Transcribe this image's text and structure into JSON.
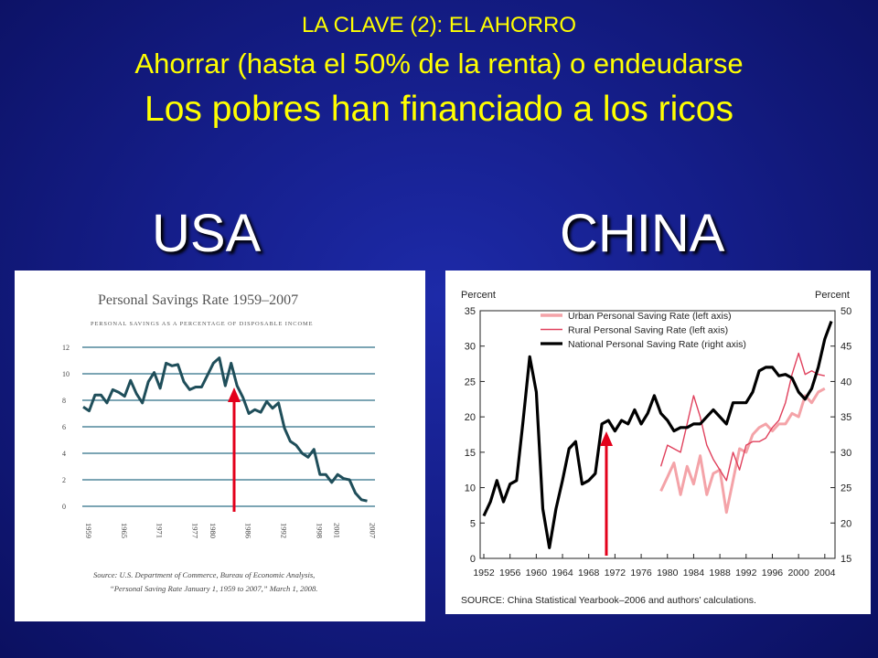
{
  "slide": {
    "title_line1": "LA CLAVE (2): EL AHORRO",
    "title_line2": "Ahorrar (hasta el 50% de la renta) o endeudarse",
    "title_line3": "Los pobres han financiado a los ricos",
    "left_label": "USA",
    "right_label": "CHINA"
  },
  "colors": {
    "background": "#151e8a",
    "title": "#ffff00",
    "usa_line": "#1f4e5a",
    "china_urban": "#f4a3a8",
    "china_rural": "#e0405c",
    "china_national": "#000000",
    "arrow": "#e3001b"
  },
  "chart_data": [
    {
      "type": "line",
      "title": "Personal Savings Rate 1959–2007",
      "subtitle": "PERSONAL SAVINGS AS A PERCENTAGE OF DISPOSABLE INCOME",
      "xlabel": "",
      "ylabel": "",
      "xlim": [
        1959,
        2008
      ],
      "ylim": [
        0,
        12
      ],
      "yticks": [
        0,
        2,
        4,
        6,
        8,
        10,
        12
      ],
      "xticks": [
        "1959",
        "1965",
        "1971",
        "1977",
        "1980",
        "1986",
        "1992",
        "1998",
        "2001",
        "2007"
      ],
      "grid": true,
      "source": "Source: U.S. Department of Commerce, Bureau of Economic Analysis, “Personal Saving Rate January 1, 1959 to 2007,” March 1, 2008.",
      "series": [
        {
          "x": [
            1959,
            1960,
            1961,
            1962,
            1963,
            1964,
            1965,
            1966,
            1967,
            1968,
            1969,
            1970,
            1971,
            1972,
            1973,
            1974,
            1975,
            1976,
            1977,
            1978,
            1979,
            1980,
            1981,
            1982,
            1983,
            1984,
            1985,
            1986,
            1987,
            1988,
            1989,
            1990,
            1991,
            1992,
            1993,
            1994,
            1995,
            1996,
            1997,
            1998,
            1999,
            2000,
            2001,
            2002,
            2003,
            2004,
            2005,
            2006,
            2007
          ],
          "values": [
            7.5,
            7.2,
            8.4,
            8.4,
            7.8,
            8.8,
            8.6,
            8.3,
            9.5,
            8.5,
            7.8,
            9.4,
            10.1,
            8.9,
            10.8,
            10.6,
            10.7,
            9.4,
            8.8,
            9.0,
            9.0,
            9.9,
            10.8,
            11.2,
            9.1,
            10.8,
            9.1,
            8.2,
            7.0,
            7.3,
            7.1,
            7.9,
            7.4,
            7.8,
            5.9,
            4.9,
            4.6,
            4.0,
            3.7,
            4.3,
            2.4,
            2.4,
            1.8,
            2.4,
            2.1,
            2.0,
            1.0,
            0.5,
            0.4
          ]
        }
      ],
      "annotation": "red arrow pointing up at 1986"
    },
    {
      "type": "line",
      "title": "",
      "ylabel_left": "Percent",
      "ylabel_right": "Percent",
      "xlim": [
        1952,
        2005
      ],
      "ylim_left": [
        0,
        35
      ],
      "ylim_right": [
        15,
        50
      ],
      "yticks_left": [
        0,
        5,
        10,
        15,
        20,
        25,
        30,
        35
      ],
      "yticks_right": [
        15,
        20,
        25,
        30,
        35,
        40,
        45,
        50
      ],
      "xticks": [
        "1952",
        "1956",
        "1960",
        "1964",
        "1968",
        "1972",
        "1976",
        "1980",
        "1984",
        "1988",
        "1992",
        "1996",
        "2000",
        "2004"
      ],
      "legend": "top-left",
      "source": "SOURCE: China Statistical Yearbook–2006 and authors’ calculations.",
      "series": [
        {
          "name": "Urban Personal Saving Rate (left axis)",
          "axis": "left",
          "x": [
            1979,
            1980,
            1981,
            1982,
            1983,
            1984,
            1985,
            1986,
            1987,
            1988,
            1989,
            1990,
            1991,
            1992,
            1993,
            1994,
            1995,
            1996,
            1997,
            1998,
            1999,
            2000,
            2001,
            2002,
            2003,
            2004
          ],
          "values": [
            9.5,
            11.5,
            13.5,
            9.0,
            13.0,
            10.5,
            14.5,
            9.0,
            12.0,
            12.5,
            6.5,
            11.0,
            15.5,
            15.0,
            17.5,
            18.5,
            19.0,
            18.0,
            19.0,
            19.0,
            20.5,
            20.0,
            23.0,
            22.0,
            23.5,
            24.0
          ]
        },
        {
          "name": "Rural Personal Saving Rate (left axis)",
          "axis": "left",
          "x": [
            1979,
            1980,
            1981,
            1982,
            1983,
            1984,
            1985,
            1986,
            1987,
            1988,
            1989,
            1990,
            1991,
            1992,
            1993,
            1994,
            1995,
            1996,
            1997,
            1998,
            1999,
            2000,
            2001,
            2002,
            2003,
            2004
          ],
          "values": [
            13.0,
            16.0,
            15.5,
            15.0,
            19.0,
            23.0,
            20.0,
            16.0,
            14.0,
            12.5,
            11.0,
            15.0,
            12.5,
            16.0,
            16.5,
            16.5,
            17.0,
            18.5,
            19.5,
            22.0,
            26.0,
            29.0,
            26.0,
            26.5,
            26.0,
            25.8
          ]
        },
        {
          "name": "National Personal Saving Rate (right axis)",
          "axis": "right",
          "x": [
            1952,
            1953,
            1954,
            1955,
            1956,
            1957,
            1958,
            1959,
            1960,
            1961,
            1962,
            1963,
            1964,
            1965,
            1966,
            1967,
            1968,
            1969,
            1970,
            1971,
            1972,
            1973,
            1974,
            1975,
            1976,
            1977,
            1978,
            1979,
            1980,
            1981,
            1982,
            1983,
            1984,
            1985,
            1986,
            1987,
            1988,
            1989,
            1990,
            1991,
            1992,
            1993,
            1994,
            1995,
            1996,
            1997,
            1998,
            1999,
            2000,
            2001,
            2002,
            2003,
            2004,
            2005
          ],
          "values": [
            21,
            23,
            26,
            23,
            25.5,
            26,
            34.5,
            43.5,
            38.5,
            22,
            16.5,
            22,
            26,
            30.5,
            31.5,
            25.5,
            26,
            27,
            34,
            34.5,
            33,
            34.5,
            34,
            36,
            34,
            35.5,
            38,
            35.5,
            34.5,
            33,
            33.5,
            33.5,
            34,
            34,
            35,
            36,
            35,
            34,
            37,
            37,
            37,
            38.5,
            41.5,
            42,
            42,
            40.8,
            41,
            40.5,
            38.5,
            37.5,
            39,
            42,
            46,
            48.5
          ]
        }
      ],
      "annotation": "red arrow pointing up at 1972"
    }
  ]
}
